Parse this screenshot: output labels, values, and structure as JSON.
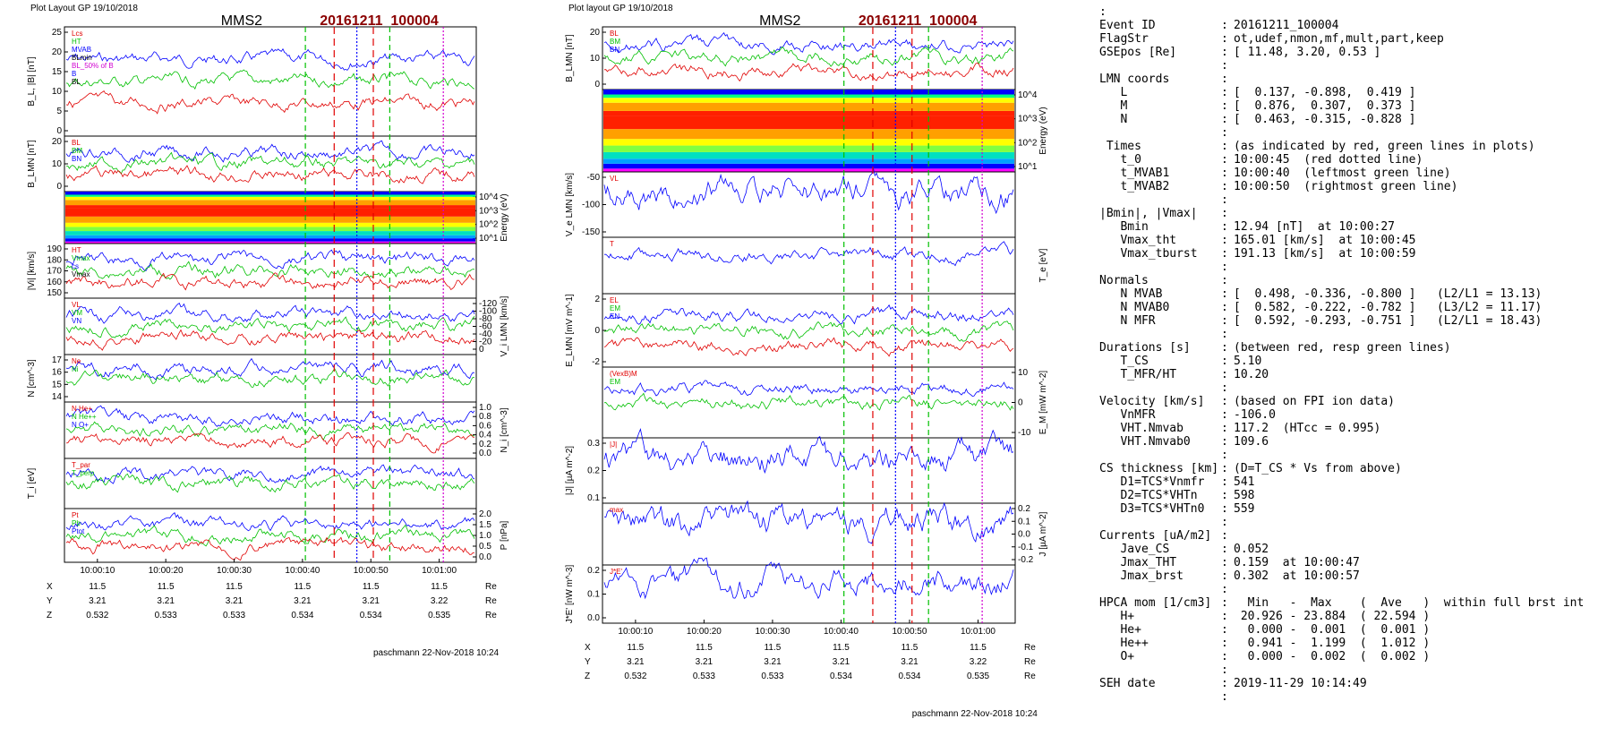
{
  "left": {
    "header": "Plot Layout GP 19/10/2018",
    "sat": "MMS2",
    "event": "20161211_100004",
    "footer": "paschmann 22-Nov-2018 10:24",
    "xticks": [
      "10:00:10",
      "10:00:20",
      "10:00:30",
      "10:00:40",
      "10:00:50",
      "10:01:00"
    ],
    "pos_rows": [
      {
        "label": "X",
        "values": [
          "11.5",
          "11.5",
          "11.5",
          "11.5",
          "11.5",
          "11.5"
        ],
        "unit": "Re"
      },
      {
        "label": "Y",
        "values": [
          "3.21",
          "3.21",
          "3.21",
          "3.21",
          "3.21",
          "3.22"
        ],
        "unit": "Re"
      },
      {
        "label": "Z",
        "values": [
          "0.532",
          "0.533",
          "0.533",
          "0.534",
          "0.534",
          "0.535"
        ],
        "unit": "Re"
      }
    ],
    "panels": [
      {
        "ylabel": "B_L, |B| [nT]",
        "side": "left",
        "ticks": [
          "0",
          "5",
          "10",
          "15",
          "20",
          "25"
        ],
        "legend": [
          "Lcs",
          "HT",
          "MVAB",
          "BLmin",
          "BL_50% of B",
          "B",
          "BL"
        ]
      },
      {
        "ylabel": "B_LMN [nT]",
        "side": "left",
        "ticks": [
          "0",
          "10",
          "20"
        ],
        "legend": [
          "BL",
          "BM",
          "BN"
        ]
      },
      {
        "ylabel": "Energy (eV)",
        "side": "right",
        "ticks": [
          "10^1",
          "10^2",
          "10^3",
          "10^4"
        ],
        "legend": []
      },
      {
        "ylabel": "|Vi| [km/s]",
        "side": "left",
        "ticks": [
          "150",
          "160",
          "170",
          "180",
          "190"
        ],
        "legend": [
          "HT",
          "Vmax",
          "cs",
          "Vmax"
        ]
      },
      {
        "ylabel": "V_i LMN [km/s]",
        "side": "right",
        "ticks": [
          "0",
          "-20",
          "-40",
          "-60",
          "-80",
          "-100",
          "-120"
        ],
        "legend": [
          "VL",
          "VM",
          "VN"
        ]
      },
      {
        "ylabel": "N [cm^-3]",
        "side": "left",
        "ticks": [
          "14",
          "15",
          "16",
          "17"
        ],
        "legend": [
          "Ne",
          "Ni"
        ]
      },
      {
        "ylabel": "N_i [cm^-3]",
        "side": "right",
        "ticks": [
          "0.0",
          "0.2",
          "0.4",
          "0.6",
          "0.8",
          "1.0"
        ],
        "legend": [
          "N He+",
          "N He++",
          "N O+"
        ]
      },
      {
        "ylabel": "T_i [eV]",
        "side": "left",
        "ticks": [],
        "legend": [
          "T_par",
          "T_perp"
        ]
      },
      {
        "ylabel": "P [nPa]",
        "side": "right",
        "ticks": [
          "0.0",
          "0.5",
          "1.0",
          "1.5",
          "2.0"
        ],
        "legend": [
          "Pt",
          "Pb",
          "Ptot"
        ]
      }
    ]
  },
  "middle": {
    "header": "Plot layout GP 19/10/2018",
    "sat": "MMS2",
    "event": "20161211_100004",
    "footer": "paschmann 22-Nov-2018 10:24",
    "xticks": [
      "10:00:10",
      "10:00:20",
      "10:00:30",
      "10:00:40",
      "10:00:50",
      "10:01:00"
    ],
    "pos_rows": [
      {
        "label": "X",
        "values": [
          "11.5",
          "11.5",
          "11.5",
          "11.5",
          "11.5",
          "11.5"
        ],
        "unit": "Re"
      },
      {
        "label": "Y",
        "values": [
          "3.21",
          "3.21",
          "3.21",
          "3.21",
          "3.21",
          "3.22"
        ],
        "unit": "Re"
      },
      {
        "label": "Z",
        "values": [
          "0.532",
          "0.533",
          "0.533",
          "0.534",
          "0.534",
          "0.535"
        ],
        "unit": "Re"
      }
    ],
    "panels": [
      {
        "ylabel": "B_LMN [nT]",
        "side": "left",
        "ticks": [
          "0",
          "10",
          "20"
        ],
        "legend": [
          "BL",
          "BM",
          "BN"
        ]
      },
      {
        "ylabel": "Energy (eV)",
        "side": "right",
        "ticks": [
          "10^1",
          "10^2",
          "10^3",
          "10^4"
        ],
        "legend": []
      },
      {
        "ylabel": "V_e LMN [km/s]",
        "side": "left",
        "ticks": [
          "-150",
          "-100",
          "-50"
        ],
        "legend": [
          "VL"
        ]
      },
      {
        "ylabel": "T_e [eV]",
        "side": "right",
        "ticks": [],
        "legend": [
          "T"
        ]
      },
      {
        "ylabel": "E_LMN [mV m^-1]",
        "side": "left",
        "ticks": [
          "-2",
          "0",
          "2"
        ],
        "legend": [
          "EL",
          "EM",
          "EN"
        ]
      },
      {
        "ylabel": "E_M [mW m^-2]",
        "side": "right",
        "ticks": [
          "-10",
          "0",
          "10"
        ],
        "legend": [
          "(VexB)M",
          "EM"
        ]
      },
      {
        "ylabel": "|J| [µA m^-2]",
        "side": "left",
        "ticks": [
          "0.1",
          "0.2",
          "0.3"
        ],
        "legend": [
          "|J|"
        ]
      },
      {
        "ylabel": "J [µA m^-2]",
        "side": "right",
        "ticks": [
          "-0.2",
          "-0.1",
          "0.0",
          "0.1",
          "0.2"
        ],
        "legend": [
          "max"
        ]
      },
      {
        "ylabel": "J*E' [nW m^-3]",
        "side": "left",
        "ticks": [
          "0.0",
          "0.1",
          "0.2"
        ],
        "legend": [
          "J*E'"
        ]
      }
    ]
  },
  "summary": [
    {
      "k": ":",
      "v": ""
    },
    {
      "k": "Event ID",
      "v": "20161211_100004"
    },
    {
      "k": "FlagStr",
      "v": "ot,udef,nmon,mf,mult,part,keep"
    },
    {
      "k": "GSEpos [Re]",
      "v": "[ 11.48, 3.20, 0.53 ]"
    },
    {
      "k": "",
      "v": ""
    },
    {
      "k": "LMN coords",
      "v": ""
    },
    {
      "k": "   L",
      "v": "[  0.137, -0.898,  0.419 ]"
    },
    {
      "k": "   M",
      "v": "[  0.876,  0.307,  0.373 ]"
    },
    {
      "k": "   N",
      "v": "[  0.463, -0.315, -0.828 ]"
    },
    {
      "k": "",
      "v": ""
    },
    {
      "k": " Times",
      "v": "(as indicated by red, green lines in plots)"
    },
    {
      "k": "   t_0",
      "v": "10:00:45  (red dotted line)"
    },
    {
      "k": "   t_MVAB1",
      "v": "10:00:40  (leftmost green line)"
    },
    {
      "k": "   t_MVAB2",
      "v": "10:00:50  (rightmost green line)"
    },
    {
      "k": "",
      "v": ""
    },
    {
      "k": "|Bmin|, |Vmax|",
      "v": ""
    },
    {
      "k": "   Bmin",
      "v": "12.94 [nT]  at 10:00:27"
    },
    {
      "k": "   Vmax_tht",
      "v": "165.01 [km/s]  at 10:00:45"
    },
    {
      "k": "   Vmax_tburst",
      "v": "191.13 [km/s]  at 10:00:59"
    },
    {
      "k": "",
      "v": ""
    },
    {
      "k": "Normals",
      "v": ""
    },
    {
      "k": "   N MVAB",
      "v": "[  0.498, -0.336, -0.800 ]   (L2/L1 = 13.13)"
    },
    {
      "k": "   N MVAB0",
      "v": "[  0.582, -0.222, -0.782 ]   (L3/L2 = 11.17)"
    },
    {
      "k": "   N MFR",
      "v": "[  0.592, -0.293, -0.751 ]   (L2/L1 = 18.43)"
    },
    {
      "k": "",
      "v": ""
    },
    {
      "k": "Durations [s]",
      "v": "(between red, resp green lines)"
    },
    {
      "k": "   T_CS",
      "v": "5.10"
    },
    {
      "k": "   T_MFR/HT",
      "v": "10.20"
    },
    {
      "k": "",
      "v": ""
    },
    {
      "k": "Velocity [km/s]",
      "v": "(based on FPI ion data)"
    },
    {
      "k": "   VnMFR",
      "v": "-106.0"
    },
    {
      "k": "   VHT.Nmvab",
      "v": "117.2  (HTcc = 0.995)"
    },
    {
      "k": "   VHT.Nmvab0",
      "v": "109.6"
    },
    {
      "k": "",
      "v": ""
    },
    {
      "k": "CS thickness [km]",
      "v": "(D=T_CS * Vs from above)"
    },
    {
      "k": "   D1=TCS*Vnmfr",
      "v": "541"
    },
    {
      "k": "   D2=TCS*VHTn",
      "v": "598"
    },
    {
      "k": "   D3=TCS*VHTn0",
      "v": "559"
    },
    {
      "k": "",
      "v": ""
    },
    {
      "k": "Currents [uA/m2]",
      "v": ""
    },
    {
      "k": "   Jave_CS",
      "v": "0.052"
    },
    {
      "k": "   Jmax_THT",
      "v": "0.159  at 10:00:47"
    },
    {
      "k": "   Jmax_brst",
      "v": "0.302  at 10:00:57"
    },
    {
      "k": "",
      "v": ""
    },
    {
      "k": "HPCA mom [1/cm3]",
      "v": "  Min   -  Max    (  Ave   )  within full brst int"
    },
    {
      "k": "   H+",
      "v": " 20.926 - 23.884  ( 22.594 )"
    },
    {
      "k": "   He+",
      "v": "  0.000 -  0.001  (  0.001 )"
    },
    {
      "k": "   He++",
      "v": "  0.941 -  1.199  (  1.012 )"
    },
    {
      "k": "   O+",
      "v": "  0.000 -  0.002  (  0.002 )"
    },
    {
      "k": "",
      "v": ""
    },
    {
      "k": "SEH date",
      "v": "2019-11-29 10:14:49"
    },
    {
      "k": "",
      "v": ""
    }
  ],
  "colors": {
    "event": "#8b0000",
    "red": "#e00000",
    "green": "#00c000",
    "blue": "#0000ff",
    "magenta": "#d000d0",
    "grey": "#888888"
  }
}
